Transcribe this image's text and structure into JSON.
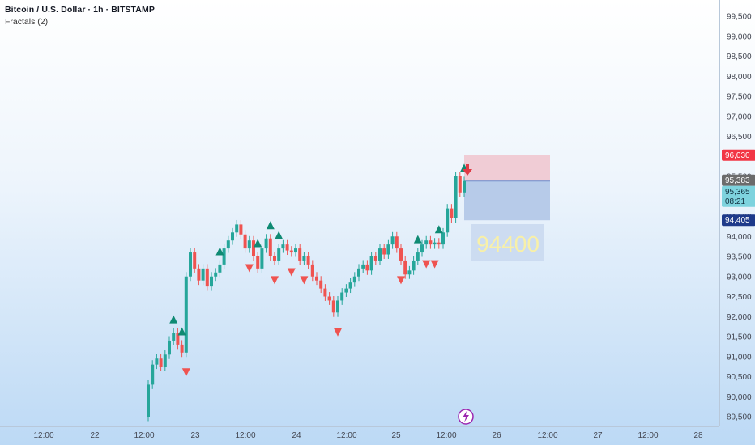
{
  "header": {
    "title": "Bitcoin / U.S. Dollar · 1h · BITSTAMP",
    "indicator": "Fractals (2)"
  },
  "colors": {
    "up": "#26a69a",
    "down": "#ef5350",
    "fractal_up": "#0f8a73",
    "fractal_down": "#ef5350",
    "stop_zone": "#f0c8d0",
    "target_zone": "#b4c8e8",
    "axis_text": "#434651"
  },
  "chart_data": {
    "type": "candlestick",
    "symbol": "Bitcoin / U.S. Dollar",
    "timeframe": "1h",
    "exchange": "BITSTAMP",
    "y_range": [
      89250,
      99750
    ],
    "y_ticks": [
      "89,500",
      "90,000",
      "90,500",
      "91,000",
      "91,500",
      "92,000",
      "92,500",
      "93,000",
      "93,500",
      "94,000",
      "94,500",
      "95,000",
      "95,500",
      "96,000",
      "96,500",
      "97,000",
      "97,500",
      "98,000",
      "98,500",
      "99,000",
      "99,500"
    ],
    "x_labels": [
      "12:00",
      "22",
      "12:00",
      "23",
      "12:00",
      "24",
      "12:00",
      "25",
      "12:00",
      "26",
      "12:00",
      "27",
      "12:00",
      "28"
    ],
    "series_points": [
      [
        89500,
        90300
      ],
      [
        90300,
        90800
      ],
      [
        90800,
        90950
      ],
      [
        90950,
        90750
      ],
      [
        90750,
        91050
      ],
      [
        91050,
        91400
      ],
      [
        91400,
        91600
      ],
      [
        91600,
        91300
      ],
      [
        91300,
        91100
      ],
      [
        91100,
        93000
      ],
      [
        93000,
        93600
      ],
      [
        93600,
        93200
      ],
      [
        93200,
        92900
      ],
      [
        92900,
        93200
      ],
      [
        93200,
        92750
      ],
      [
        92750,
        93000
      ],
      [
        93000,
        93100
      ],
      [
        93100,
        93300
      ],
      [
        93300,
        93700
      ],
      [
        93700,
        93900
      ],
      [
        93900,
        94100
      ],
      [
        94100,
        94300
      ],
      [
        94300,
        94050
      ],
      [
        94050,
        93700
      ],
      [
        93700,
        93900
      ],
      [
        93900,
        93500
      ],
      [
        93500,
        93200
      ],
      [
        93200,
        93700
      ],
      [
        93700,
        93950
      ],
      [
        93950,
        93500
      ],
      [
        93500,
        93400
      ],
      [
        93400,
        93700
      ],
      [
        93700,
        93800
      ],
      [
        93800,
        93650
      ],
      [
        93650,
        93600
      ],
      [
        93600,
        93700
      ],
      [
        93700,
        93400
      ],
      [
        93400,
        93500
      ],
      [
        93500,
        93300
      ],
      [
        93300,
        93000
      ],
      [
        93000,
        92900
      ],
      [
        92900,
        92700
      ],
      [
        92700,
        92500
      ],
      [
        92500,
        92400
      ],
      [
        92400,
        92100
      ],
      [
        92100,
        92400
      ],
      [
        92400,
        92600
      ],
      [
        92600,
        92700
      ],
      [
        92700,
        92850
      ],
      [
        92850,
        93000
      ],
      [
        93000,
        93200
      ],
      [
        93200,
        93300
      ],
      [
        93300,
        93150
      ],
      [
        93150,
        93500
      ],
      [
        93500,
        93400
      ],
      [
        93400,
        93700
      ],
      [
        93700,
        93550
      ],
      [
        93550,
        93800
      ],
      [
        93800,
        94000
      ],
      [
        94000,
        93700
      ],
      [
        93700,
        93400
      ],
      [
        93400,
        93050
      ],
      [
        93050,
        93150
      ],
      [
        93150,
        93400
      ],
      [
        93400,
        93600
      ],
      [
        93600,
        93800
      ],
      [
        93800,
        93900
      ],
      [
        93900,
        93800
      ],
      [
        93800,
        93850
      ],
      [
        93850,
        93800
      ],
      [
        93800,
        94100
      ],
      [
        94100,
        94700
      ],
      [
        94700,
        94450
      ],
      [
        94450,
        95500
      ],
      [
        95500,
        95100
      ],
      [
        95100,
        95383
      ]
    ],
    "current_price": "95,383",
    "last_price": "95,365",
    "countdown": "08:21",
    "stop_level": "96,030",
    "entry_level": "94,405",
    "annotation": "94400",
    "fractals_up": [
      6,
      8,
      17,
      26,
      29,
      31,
      64,
      69,
      75
    ],
    "fractals_down": [
      9,
      24,
      30,
      34,
      37,
      45,
      60,
      66,
      68
    ]
  }
}
